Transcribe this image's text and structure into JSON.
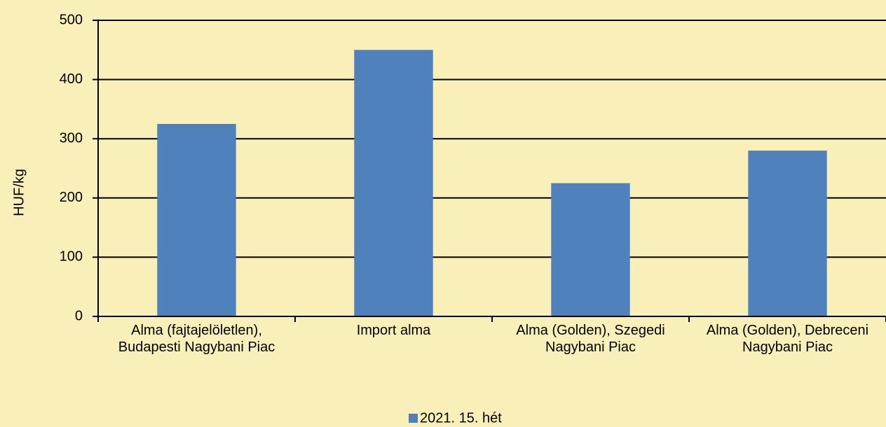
{
  "chart_data": {
    "type": "bar",
    "y_label": "HUF/kg",
    "categories": [
      "Alma (fajtajelöletlen), Budapesti Nagybani Piac",
      "Import alma",
      "Alma (Golden), Szegedi Nagybani Piac",
      "Alma (Golden), Debreceni Nagybani Piac"
    ],
    "series": [
      {
        "name": "2021. 15. hét",
        "color": "#4f81bd",
        "values": [
          325,
          450,
          225,
          280
        ]
      }
    ],
    "ylim": [
      0,
      500
    ],
    "yticks": [
      0,
      100,
      200,
      300,
      400,
      500
    ],
    "grid": true,
    "legend": "bottom"
  }
}
